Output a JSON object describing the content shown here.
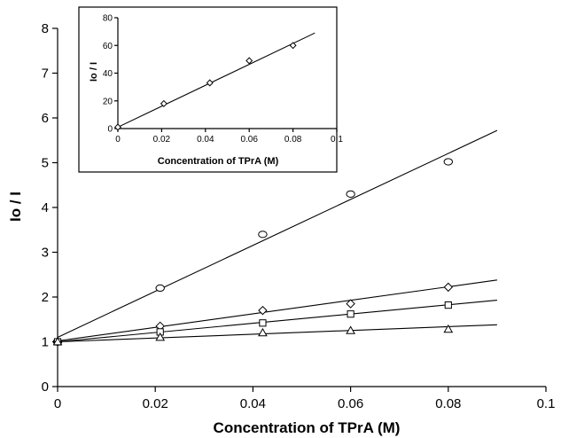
{
  "chart_data": [
    {
      "type": "scatter",
      "title": "",
      "xlabel": "Concentration of TPrA (M)",
      "ylabel": "Io / I",
      "xlim": [
        0,
        0.1
      ],
      "ylim": [
        0,
        8
      ],
      "x_ticks": [
        "0",
        "0.02",
        "0.04",
        "0.06",
        "0.08",
        "0.1"
      ],
      "y_ticks": [
        "0",
        "1",
        "2",
        "3",
        "4",
        "5",
        "6",
        "7",
        "8"
      ],
      "grid": false,
      "legend": "none",
      "series": [
        {
          "marker": "circle",
          "x": [
            0,
            0.021,
            0.042,
            0.06,
            0.08
          ],
          "y": [
            1.0,
            2.2,
            3.4,
            4.3,
            5.02
          ],
          "fit": {
            "x": [
              0,
              0.09
            ],
            "y": [
              1.1,
              5.72
            ]
          }
        },
        {
          "marker": "diamond",
          "x": [
            0,
            0.021,
            0.042,
            0.06,
            0.08
          ],
          "y": [
            1.0,
            1.35,
            1.7,
            1.85,
            2.22
          ],
          "fit": {
            "x": [
              0,
              0.09
            ],
            "y": [
              1.02,
              2.38
            ]
          }
        },
        {
          "marker": "square",
          "x": [
            0,
            0.021,
            0.042,
            0.06,
            0.08
          ],
          "y": [
            1.0,
            1.22,
            1.42,
            1.62,
            1.82
          ],
          "fit": {
            "x": [
              0,
              0.09
            ],
            "y": [
              1.0,
              1.93
            ]
          }
        },
        {
          "marker": "triangle",
          "x": [
            0,
            0.021,
            0.042,
            0.06,
            0.08
          ],
          "y": [
            1.0,
            1.1,
            1.2,
            1.25,
            1.28
          ],
          "fit": {
            "x": [
              0,
              0.09
            ],
            "y": [
              1.0,
              1.38
            ]
          }
        }
      ]
    },
    {
      "type": "scatter",
      "title": "",
      "xlabel": "Concentration of TPrA (M)",
      "ylabel": "Io / I",
      "xlim": [
        0,
        0.1
      ],
      "ylim": [
        0,
        80
      ],
      "x_ticks": [
        "0",
        "0.02",
        "0.04",
        "0.06",
        "0.08",
        "0.1"
      ],
      "y_ticks": [
        "0",
        "20",
        "40",
        "60",
        "80"
      ],
      "grid": false,
      "legend": "none",
      "series": [
        {
          "marker": "diamond",
          "x": [
            0,
            0.021,
            0.042,
            0.06,
            0.08
          ],
          "y": [
            1,
            18,
            33,
            49,
            60
          ],
          "fit": {
            "x": [
              0,
              0.09
            ],
            "y": [
              1,
              69
            ]
          }
        }
      ]
    }
  ]
}
